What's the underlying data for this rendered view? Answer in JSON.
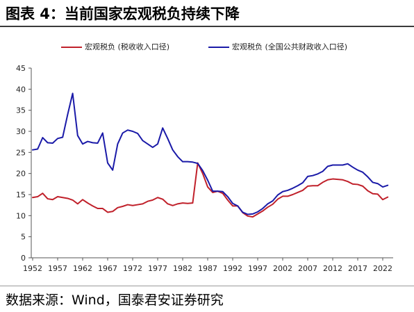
{
  "title": "图表 4：当前国家宏观税负持续下降",
  "source": "数据来源：Wind，国泰君安证券研究",
  "chart_data": {
    "type": "line",
    "title": "",
    "xlabel": "",
    "ylabel": "",
    "legend": "top",
    "grid": false,
    "ylim": [
      0,
      45
    ],
    "xlim": [
      1952,
      2023
    ],
    "y_ticks": [
      "0",
      "5",
      "10",
      "15",
      "20",
      "25",
      "30",
      "35",
      "40",
      "45"
    ],
    "x_ticks": [
      "1952",
      "1957",
      "1962",
      "1967",
      "1972",
      "1977",
      "1982",
      "1987",
      "1992",
      "1997",
      "2002",
      "2007",
      "2012",
      "2017",
      "2022"
    ],
    "x": [
      1952,
      1953,
      1954,
      1955,
      1956,
      1957,
      1958,
      1959,
      1960,
      1961,
      1962,
      1963,
      1964,
      1965,
      1966,
      1967,
      1968,
      1969,
      1970,
      1971,
      1972,
      1973,
      1974,
      1975,
      1976,
      1977,
      1978,
      1979,
      1980,
      1981,
      1982,
      1983,
      1984,
      1985,
      1986,
      1987,
      1988,
      1989,
      1990,
      1991,
      1992,
      1993,
      1994,
      1995,
      1996,
      1997,
      1998,
      1999,
      2000,
      2001,
      2002,
      2003,
      2004,
      2005,
      2006,
      2007,
      2008,
      2009,
      2010,
      2011,
      2012,
      2013,
      2014,
      2015,
      2016,
      2017,
      2018,
      2019,
      2020,
      2021,
      2022,
      2023
    ],
    "series": [
      {
        "name": "宏观税负 (税收收入口径)",
        "color": "#c0202a",
        "values": [
          14.3,
          14.5,
          15.3,
          14.0,
          13.8,
          14.5,
          14.3,
          14.1,
          13.7,
          12.8,
          13.8,
          13.0,
          12.3,
          11.7,
          11.7,
          10.8,
          11.0,
          11.9,
          12.2,
          12.6,
          12.4,
          12.6,
          12.8,
          13.4,
          13.7,
          14.3,
          13.9,
          12.8,
          12.4,
          12.8,
          13.0,
          12.9,
          13.0,
          22.5,
          20.0,
          16.8,
          15.5,
          15.8,
          15.3,
          13.7,
          12.3,
          12.3,
          10.7,
          9.9,
          9.7,
          10.4,
          11.1,
          12.0,
          12.7,
          13.9,
          14.6,
          14.6,
          15.0,
          15.5,
          16.0,
          17.0,
          17.1,
          17.1,
          17.9,
          18.5,
          18.7,
          18.6,
          18.5,
          18.1,
          17.5,
          17.4,
          17.0,
          15.9,
          15.2,
          15.1,
          13.8,
          14.4
        ]
      },
      {
        "name": "宏观税负 (全国公共财政收入口径)",
        "color": "#1a1aa8",
        "values": [
          25.6,
          25.8,
          28.5,
          27.3,
          27.2,
          28.3,
          28.6,
          34.0,
          39.0,
          29.0,
          27.0,
          27.6,
          27.3,
          27.2,
          29.6,
          22.5,
          20.8,
          27.0,
          29.6,
          30.3,
          30.0,
          29.5,
          27.8,
          27.0,
          26.2,
          27.0,
          30.8,
          28.3,
          25.6,
          24.0,
          22.8,
          22.8,
          22.7,
          22.4,
          20.7,
          18.4,
          15.8,
          15.8,
          15.7,
          14.5,
          12.9,
          12.3,
          10.8,
          10.3,
          10.4,
          10.9,
          11.7,
          12.8,
          13.5,
          14.9,
          15.7,
          16.0,
          16.5,
          17.1,
          17.8,
          19.3,
          19.5,
          19.9,
          20.5,
          21.7,
          22.0,
          22.0,
          22.0,
          22.3,
          21.5,
          20.8,
          20.3,
          19.2,
          17.9,
          17.6,
          16.8,
          17.2
        ]
      }
    ]
  }
}
